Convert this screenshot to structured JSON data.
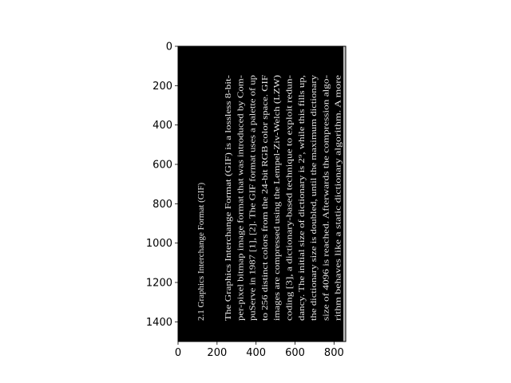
{
  "plot": {
    "xlim": [
      0,
      860
    ],
    "ylim": [
      1500,
      0
    ],
    "x_ticks": [
      "0",
      "200",
      "400",
      "600",
      "800"
    ],
    "y_ticks": [
      "0",
      "200",
      "400",
      "600",
      "800",
      "1000",
      "1200",
      "1400"
    ],
    "x_tick_values": [
      0,
      200,
      400,
      600,
      800
    ],
    "y_tick_values": [
      0,
      200,
      400,
      600,
      800,
      1000,
      1200,
      1400
    ],
    "image_background": "#000000",
    "text_color": "#e6e6e6"
  },
  "document": {
    "heading": "2.1    Graphics Interchange Format (GIF)",
    "lines": [
      "The Graphics Interchange Format (GIF) is a lossless 8-bit-",
      "per-pixel bitmap image format that was introduced by Com-",
      "puServe in 1987 [1], [2]. The GIF format uses a palette of up",
      "to 256 distinct colors from the 24-bit RGB color space. GIF",
      "images are compressed using the Lempel-Ziv-Welch (LZW)",
      "coding [3], a dictionary-based technique to exploit redun-",
      "dancy. The initial size of dictionary is 2⁹, while this fills up,",
      "the dictionary size is doubled, until the maximum dictionary",
      "size of 4096 is reached. Afterwards the compression algo-",
      "rithm behaves like a static dictionary algorithm. A more"
    ]
  }
}
